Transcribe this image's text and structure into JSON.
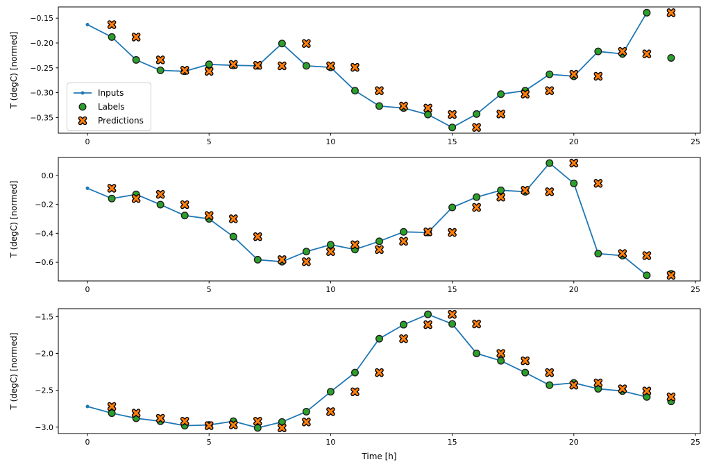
{
  "figure": {
    "x_axis_label": "Time [h]",
    "y_axis_label": "T (degC) [normed]",
    "background_color": "#ffffff",
    "axes_edge_color": "#000000",
    "tick_label_color": "#000000"
  },
  "legend": {
    "position": "center-left inside top subplot",
    "border_color": "#cbcbcb",
    "items": [
      {
        "label": "Inputs",
        "marker": "line-dot",
        "color": "#1f77b4"
      },
      {
        "label": "Labels",
        "marker": "circle",
        "color": "#2ca02c",
        "edge_color": "#1f1f1f"
      },
      {
        "label": "Predictions",
        "marker": "x",
        "color": "#ff7f0e",
        "edge_color": "#000000"
      }
    ]
  },
  "chart_data": [
    {
      "type": "line",
      "subplot": 1,
      "ylabel": "T (degC) [normed]",
      "xlabel": "",
      "xlim": [
        -1.2,
        25.2
      ],
      "ylim": [
        -0.3816,
        -0.1274
      ],
      "xticks": [
        0,
        5,
        10,
        15,
        20,
        25
      ],
      "xtick_labels": [
        "0",
        "5",
        "10",
        "15",
        "20",
        "25"
      ],
      "yticks": [
        -0.15,
        -0.2,
        -0.25,
        -0.3,
        -0.35
      ],
      "ytick_labels": [
        "−0.15",
        "−0.20",
        "−0.25",
        "−0.30",
        "−0.35"
      ],
      "grid": false,
      "series": [
        {
          "name": "Inputs",
          "style": "line-dot",
          "color": "#1f77b4",
          "x": [
            0,
            1,
            2,
            3,
            4,
            5,
            6,
            7,
            8,
            9,
            10,
            11,
            12,
            13,
            14,
            15,
            16,
            17,
            18,
            19,
            20,
            21,
            22,
            23
          ],
          "y": [
            -0.163,
            -0.188,
            -0.234,
            -0.255,
            -0.257,
            -0.243,
            -0.245,
            -0.246,
            -0.201,
            -0.246,
            -0.249,
            -0.296,
            -0.327,
            -0.331,
            -0.344,
            -0.37,
            -0.343,
            -0.303,
            -0.296,
            -0.263,
            -0.267,
            -0.217,
            -0.222,
            -0.139
          ]
        },
        {
          "name": "Labels",
          "style": "scatter-circle",
          "color": "#2ca02c",
          "edge_color": "#1f1f1f",
          "x": [
            1,
            2,
            3,
            4,
            5,
            6,
            7,
            8,
            9,
            10,
            11,
            12,
            13,
            14,
            15,
            16,
            17,
            18,
            19,
            20,
            21,
            22,
            23,
            24
          ],
          "y": [
            -0.188,
            -0.234,
            -0.255,
            -0.257,
            -0.243,
            -0.245,
            -0.246,
            -0.201,
            -0.246,
            -0.249,
            -0.296,
            -0.327,
            -0.331,
            -0.344,
            -0.37,
            -0.343,
            -0.303,
            -0.296,
            -0.263,
            -0.267,
            -0.217,
            -0.222,
            -0.139,
            -0.23
          ]
        },
        {
          "name": "Predictions",
          "style": "scatter-x",
          "color": "#ff7f0e",
          "edge_color": "#000000",
          "x": [
            1,
            2,
            3,
            4,
            5,
            6,
            7,
            8,
            9,
            10,
            11,
            12,
            13,
            14,
            15,
            16,
            17,
            18,
            19,
            20,
            21,
            22,
            23,
            24
          ],
          "y": [
            -0.163,
            -0.188,
            -0.234,
            -0.255,
            -0.257,
            -0.243,
            -0.245,
            -0.246,
            -0.201,
            -0.246,
            -0.249,
            -0.296,
            -0.327,
            -0.331,
            -0.344,
            -0.37,
            -0.343,
            -0.303,
            -0.296,
            -0.263,
            -0.267,
            -0.217,
            -0.222,
            -0.139
          ]
        }
      ]
    },
    {
      "type": "line",
      "subplot": 2,
      "ylabel": "T (degC) [normed]",
      "xlabel": "",
      "xlim": [
        -1.2,
        25.2
      ],
      "ylim": [
        -0.7288,
        0.1238
      ],
      "xticks": [
        0,
        5,
        10,
        15,
        20,
        25
      ],
      "xtick_labels": [
        "0",
        "5",
        "10",
        "15",
        "20",
        "25"
      ],
      "yticks": [
        0.0,
        -0.2,
        -0.4,
        -0.6
      ],
      "ytick_labels": [
        "0.0",
        "−0.2",
        "−0.4",
        "−0.6"
      ],
      "grid": false,
      "series": [
        {
          "name": "Inputs",
          "style": "line-dot",
          "color": "#1f77b4",
          "x": [
            0,
            1,
            2,
            3,
            4,
            5,
            6,
            7,
            8,
            9,
            10,
            11,
            12,
            13,
            14,
            15,
            16,
            17,
            18,
            19,
            20,
            21,
            22,
            23
          ],
          "y": [
            -0.089,
            -0.16,
            -0.131,
            -0.202,
            -0.277,
            -0.3,
            -0.423,
            -0.582,
            -0.596,
            -0.526,
            -0.479,
            -0.512,
            -0.455,
            -0.39,
            -0.394,
            -0.221,
            -0.15,
            -0.103,
            -0.113,
            0.085,
            -0.055,
            -0.54,
            -0.554,
            -0.69
          ]
        },
        {
          "name": "Labels",
          "style": "scatter-circle",
          "color": "#2ca02c",
          "edge_color": "#1f1f1f",
          "x": [
            1,
            2,
            3,
            4,
            5,
            6,
            7,
            8,
            9,
            10,
            11,
            12,
            13,
            14,
            15,
            16,
            17,
            18,
            19,
            20,
            21,
            22,
            23,
            24
          ],
          "y": [
            -0.16,
            -0.131,
            -0.202,
            -0.277,
            -0.3,
            -0.423,
            -0.582,
            -0.596,
            -0.526,
            -0.479,
            -0.512,
            -0.455,
            -0.39,
            -0.394,
            -0.221,
            -0.15,
            -0.103,
            -0.113,
            0.085,
            -0.055,
            -0.54,
            -0.554,
            -0.69,
            -0.68
          ]
        },
        {
          "name": "Predictions",
          "style": "scatter-x",
          "color": "#ff7f0e",
          "edge_color": "#000000",
          "x": [
            1,
            2,
            3,
            4,
            5,
            6,
            7,
            8,
            9,
            10,
            11,
            12,
            13,
            14,
            15,
            16,
            17,
            18,
            19,
            20,
            21,
            22,
            23,
            24
          ],
          "y": [
            -0.089,
            -0.16,
            -0.131,
            -0.202,
            -0.277,
            -0.3,
            -0.423,
            -0.582,
            -0.596,
            -0.526,
            -0.479,
            -0.512,
            -0.455,
            -0.39,
            -0.394,
            -0.221,
            -0.15,
            -0.103,
            -0.113,
            0.085,
            -0.055,
            -0.54,
            -0.554,
            -0.69
          ]
        }
      ]
    },
    {
      "type": "line",
      "subplot": 3,
      "ylabel": "T (degC) [normed]",
      "xlabel": "Time [h]",
      "xlim": [
        -1.2,
        25.2
      ],
      "ylim": [
        -3.087,
        -1.393
      ],
      "xticks": [
        0,
        5,
        10,
        15,
        20,
        25
      ],
      "xtick_labels": [
        "0",
        "5",
        "10",
        "15",
        "20",
        "25"
      ],
      "yticks": [
        -1.5,
        -2.0,
        -2.5,
        -3.0
      ],
      "ytick_labels": [
        "−1.5",
        "−2.0",
        "−2.5",
        "−3.0"
      ],
      "grid": false,
      "series": [
        {
          "name": "Inputs",
          "style": "line-dot",
          "color": "#1f77b4",
          "x": [
            0,
            1,
            2,
            3,
            4,
            5,
            6,
            7,
            8,
            9,
            10,
            11,
            12,
            13,
            14,
            15,
            16,
            17,
            18,
            19,
            20,
            21,
            22,
            23
          ],
          "y": [
            -2.72,
            -2.81,
            -2.88,
            -2.92,
            -2.98,
            -2.97,
            -2.92,
            -3.01,
            -2.93,
            -2.79,
            -2.52,
            -2.26,
            -1.8,
            -1.61,
            -1.47,
            -1.6,
            -2.0,
            -2.1,
            -2.26,
            -2.43,
            -2.4,
            -2.48,
            -2.51,
            -2.59
          ]
        },
        {
          "name": "Labels",
          "style": "scatter-circle",
          "color": "#2ca02c",
          "edge_color": "#1f1f1f",
          "x": [
            1,
            2,
            3,
            4,
            5,
            6,
            7,
            8,
            9,
            10,
            11,
            12,
            13,
            14,
            15,
            16,
            17,
            18,
            19,
            20,
            21,
            22,
            23,
            24
          ],
          "y": [
            -2.81,
            -2.88,
            -2.92,
            -2.98,
            -2.97,
            -2.92,
            -3.01,
            -2.93,
            -2.79,
            -2.52,
            -2.26,
            -1.8,
            -1.61,
            -1.47,
            -1.6,
            -2.0,
            -2.1,
            -2.26,
            -2.43,
            -2.4,
            -2.48,
            -2.51,
            -2.59,
            -2.65
          ]
        },
        {
          "name": "Predictions",
          "style": "scatter-x",
          "color": "#ff7f0e",
          "edge_color": "#000000",
          "x": [
            1,
            2,
            3,
            4,
            5,
            6,
            7,
            8,
            9,
            10,
            11,
            12,
            13,
            14,
            15,
            16,
            17,
            18,
            19,
            20,
            21,
            22,
            23,
            24
          ],
          "y": [
            -2.72,
            -2.81,
            -2.88,
            -2.92,
            -2.98,
            -2.97,
            -2.92,
            -3.01,
            -2.93,
            -2.79,
            -2.52,
            -2.26,
            -1.8,
            -1.61,
            -1.47,
            -1.6,
            -2.0,
            -2.1,
            -2.26,
            -2.43,
            -2.4,
            -2.48,
            -2.51,
            -2.59
          ]
        }
      ]
    }
  ]
}
